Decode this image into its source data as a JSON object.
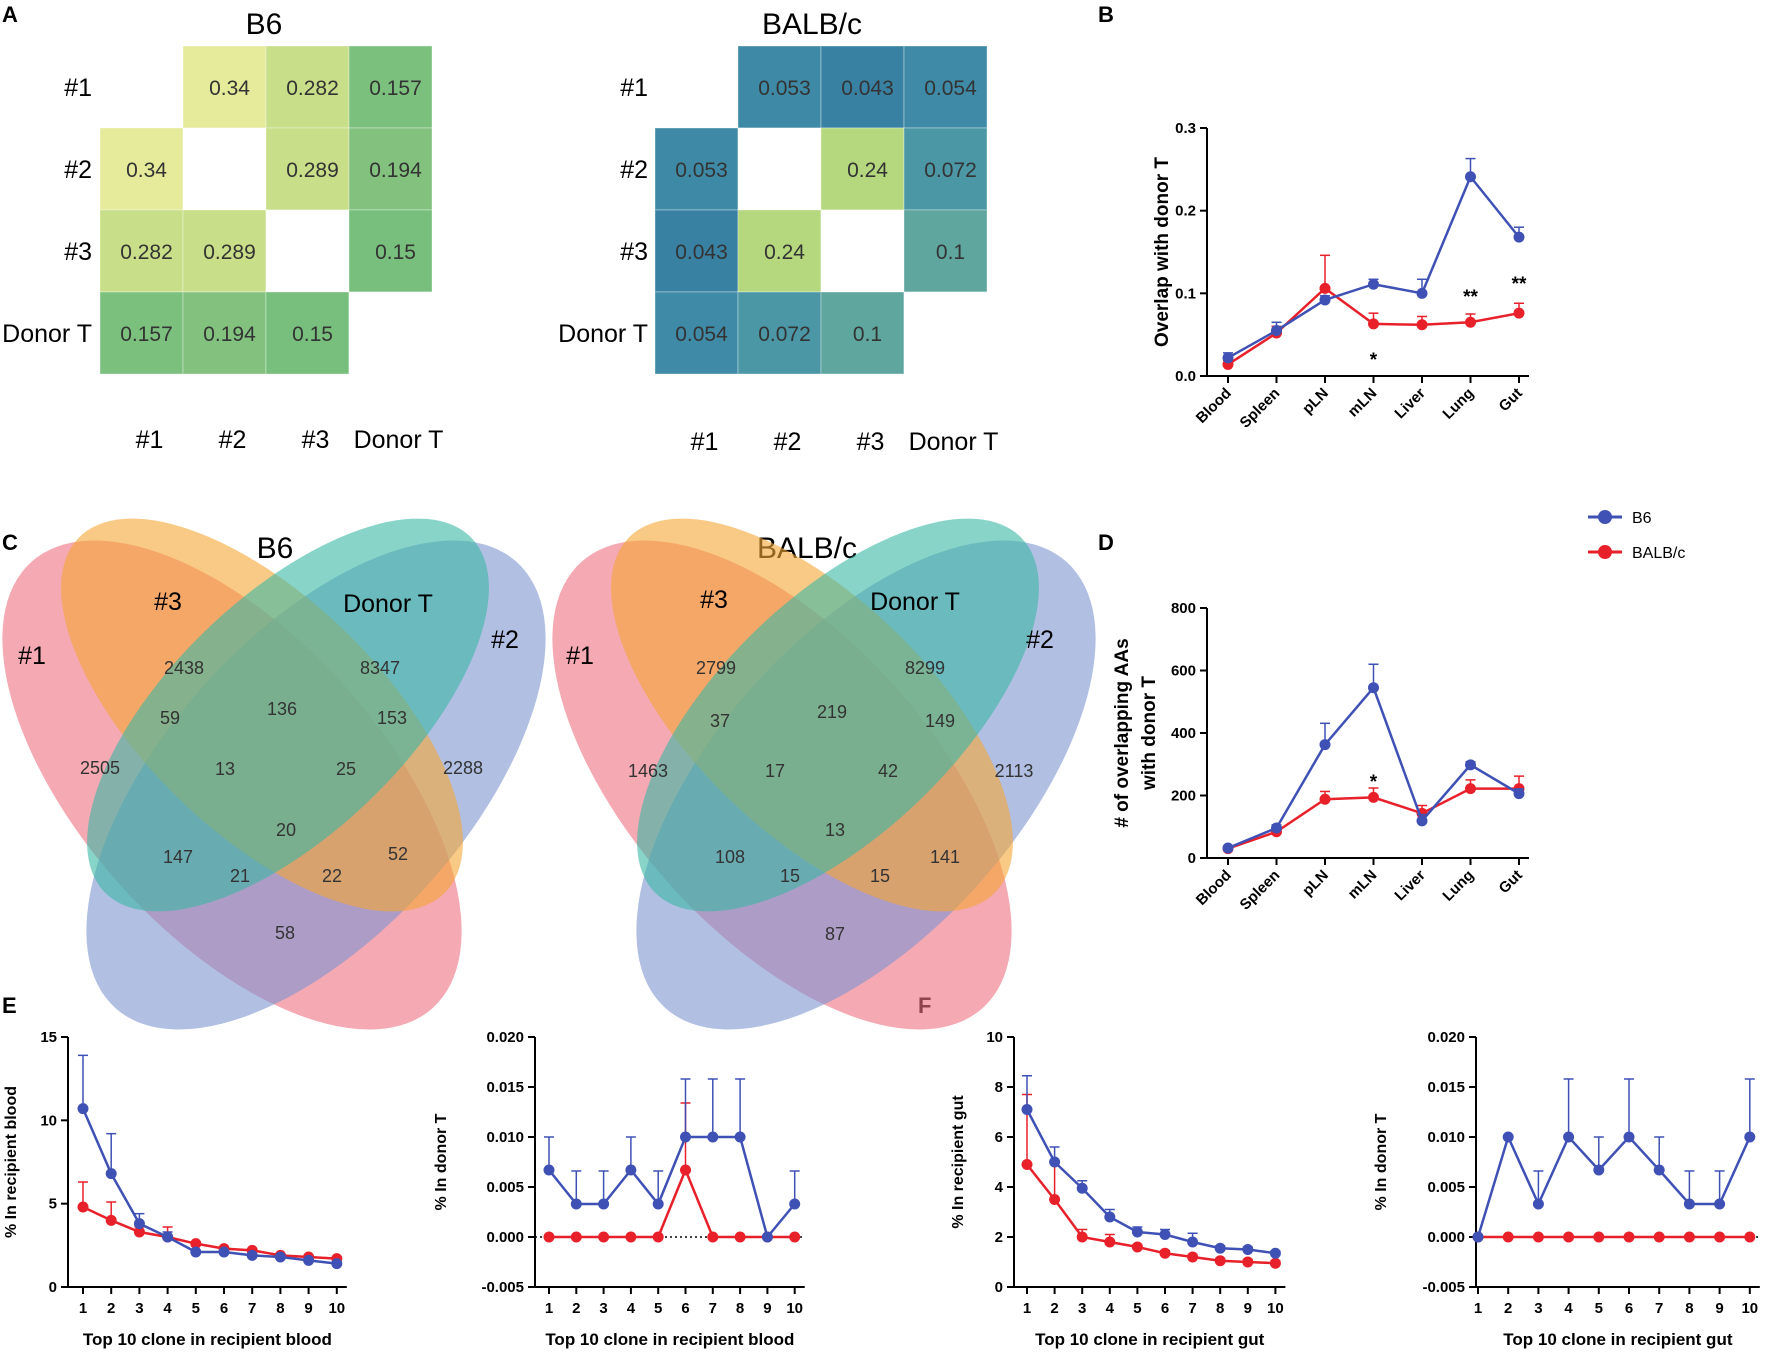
{
  "panels": {
    "A": "A",
    "B": "B",
    "C": "C",
    "D": "D",
    "E": "E",
    "F": "F"
  },
  "colors": {
    "b6": "#3f51b5",
    "balbc": "#e8202a",
    "axis": "#000000"
  },
  "legend": [
    {
      "name": "B6",
      "color": "#3f51b5"
    },
    {
      "name": "BALB/c",
      "color": "#e8202a"
    }
  ],
  "chart_data": [
    {
      "id": "A1",
      "type": "heatmap",
      "title": "B6",
      "rows": [
        "#1",
        "#2",
        "#3",
        "Donor T"
      ],
      "cols": [
        "#1",
        "#2",
        "#3",
        "Donor T"
      ],
      "values": [
        [
          null,
          0.34,
          0.282,
          0.157
        ],
        [
          0.34,
          null,
          0.289,
          0.194
        ],
        [
          0.282,
          0.289,
          null,
          0.15
        ],
        [
          0.157,
          0.194,
          0.15,
          null
        ]
      ],
      "labels": [
        [
          "",
          "0.34",
          "0.282",
          "0.157"
        ],
        [
          "0.34",
          "",
          "0.289",
          "0.194"
        ],
        [
          "0.282",
          "0.289",
          "",
          "0.15"
        ],
        [
          "0.157",
          "0.194",
          "0.15",
          ""
        ]
      ],
      "colors": [
        [
          "#ffffff",
          "#e5eb9a",
          "#c9de88",
          "#7cc07d"
        ],
        [
          "#e5eb9a",
          "#ffffff",
          "#c8de88",
          "#82c27e"
        ],
        [
          "#c9de88",
          "#c8de88",
          "#ffffff",
          "#78be7c"
        ],
        [
          "#7cc07d",
          "#82c27e",
          "#78be7c",
          "#ffffff"
        ]
      ]
    },
    {
      "id": "A2",
      "type": "heatmap",
      "title": "BALB/c",
      "rows": [
        "#1",
        "#2",
        "#3",
        "Donor T"
      ],
      "cols": [
        "#1",
        "#2",
        "#3",
        "Donor T"
      ],
      "values": [
        [
          null,
          0.053,
          0.043,
          0.054
        ],
        [
          0.053,
          null,
          0.24,
          0.072
        ],
        [
          0.043,
          0.24,
          null,
          0.1
        ],
        [
          0.054,
          0.072,
          0.1,
          null
        ]
      ],
      "labels": [
        [
          "",
          "0.053",
          "0.043",
          "0.054"
        ],
        [
          "0.053",
          "",
          "0.24",
          "0.072"
        ],
        [
          "0.043",
          "0.24",
          "",
          "0.1"
        ],
        [
          "0.054",
          "0.072",
          "0.1",
          ""
        ]
      ],
      "colors": [
        [
          "#ffffff",
          "#3e8aa6",
          "#3981a3",
          "#3f8ba7"
        ],
        [
          "#3e8aa6",
          "#ffffff",
          "#b5d87f",
          "#4b97a6"
        ],
        [
          "#3981a3",
          "#b5d87f",
          "#ffffff",
          "#5fa79e"
        ],
        [
          "#3f8ba7",
          "#4b97a6",
          "#5fa79e",
          "#ffffff"
        ]
      ]
    },
    {
      "id": "B",
      "type": "line",
      "ylabel": "Overlap with donor T",
      "xlabel": "",
      "categories": [
        "Blood",
        "Spleen",
        "pLN",
        "mLN",
        "Liver",
        "Lung",
        "Gut"
      ],
      "ylim": [
        0,
        0.3
      ],
      "yticks": [
        0,
        0.1,
        0.2,
        0.3
      ],
      "ytick_labels": [
        "0.0",
        "0.1",
        "0.2",
        "0.3"
      ],
      "series": [
        {
          "name": "B6",
          "color": "#3f51b5",
          "values": [
            0.022,
            0.055,
            0.092,
            0.111,
            0.1,
            0.241,
            0.168
          ],
          "err": [
            0.006,
            0.01,
            0.005,
            0.006,
            0.017,
            0.022,
            0.012
          ]
        },
        {
          "name": "BALB/c",
          "color": "#e8202a",
          "values": [
            0.014,
            0.052,
            0.106,
            0.063,
            0.062,
            0.065,
            0.076
          ],
          "err": [
            0.005,
            0.008,
            0.04,
            0.013,
            0.01,
            0.01,
            0.012
          ]
        }
      ],
      "annotations": [
        {
          "category": "mLN",
          "text": "*",
          "y": 0.022
        },
        {
          "category": "Lung",
          "text": "**",
          "y": 0.098
        },
        {
          "category": "Gut",
          "text": "**",
          "y": 0.114
        }
      ]
    },
    {
      "id": "D",
      "type": "line",
      "ylabel": "# of overlapping AAs with donor T",
      "ylabel_lines": [
        "# of overlapping AAs",
        "with donor T"
      ],
      "xlabel": "",
      "categories": [
        "Blood",
        "Spleen",
        "pLN",
        "mLN",
        "Liver",
        "Lung",
        "Gut"
      ],
      "ylim": [
        0,
        800
      ],
      "yticks": [
        0,
        200,
        400,
        600,
        800
      ],
      "ytick_labels": [
        "0",
        "200",
        "400",
        "600",
        "800"
      ],
      "series": [
        {
          "name": "B6",
          "color": "#3f51b5",
          "values": [
            32,
            96,
            363,
            545,
            119,
            298,
            206
          ],
          "err": [
            5,
            10,
            68,
            75,
            20,
            10,
            15
          ]
        },
        {
          "name": "BALB/c",
          "color": "#e8202a",
          "values": [
            30,
            84,
            188,
            194,
            143,
            222,
            222
          ],
          "err": [
            5,
            8,
            25,
            30,
            25,
            28,
            40
          ]
        }
      ],
      "annotations": [
        {
          "category": "mLN",
          "text": "*",
          "y": 250
        }
      ]
    },
    {
      "id": "E1",
      "type": "line",
      "ylabel": "% In recipient blood",
      "xlabel": "Top 10 clone in recipient blood",
      "categories": [
        "1",
        "2",
        "3",
        "4",
        "5",
        "6",
        "7",
        "8",
        "9",
        "10"
      ],
      "ylim": [
        0,
        15
      ],
      "yticks": [
        0,
        5,
        10,
        15
      ],
      "ytick_labels": [
        "0",
        "5",
        "10",
        "15"
      ],
      "series": [
        {
          "name": "B6",
          "color": "#3f51b5",
          "values": [
            10.7,
            6.8,
            3.8,
            3.0,
            2.1,
            2.1,
            1.9,
            1.8,
            1.6,
            1.4
          ],
          "err": [
            3.2,
            2.4,
            0.6,
            0.3,
            0.1,
            0.1,
            0.1,
            0.1,
            0.1,
            0.1
          ]
        },
        {
          "name": "BALB/c",
          "color": "#e8202a",
          "values": [
            4.8,
            4.0,
            3.3,
            3.0,
            2.6,
            2.3,
            2.2,
            1.9,
            1.8,
            1.7
          ],
          "err": [
            1.5,
            1.1,
            0.3,
            0.6,
            0.1,
            0.1,
            0.1,
            0.1,
            0.1,
            0.1
          ]
        }
      ]
    },
    {
      "id": "E2",
      "type": "line",
      "ylabel": "% In donor T",
      "xlabel": "Top 10 clone in recipient blood",
      "categories": [
        "1",
        "2",
        "3",
        "4",
        "5",
        "6",
        "7",
        "8",
        "9",
        "10"
      ],
      "ylim": [
        -0.005,
        0.02
      ],
      "yticks": [
        -0.005,
        0,
        0.005,
        0.01,
        0.015,
        0.02
      ],
      "ytick_labels": [
        "-0.005",
        "0.000",
        "0.005",
        "0.010",
        "0.015",
        "0.020"
      ],
      "zero_line": true,
      "series": [
        {
          "name": "B6",
          "color": "#3f51b5",
          "values": [
            0.0067,
            0.0033,
            0.0033,
            0.0067,
            0.0033,
            0.01,
            0.01,
            0.01,
            0,
            0.0033
          ],
          "err": [
            0.0033,
            0.0033,
            0.0033,
            0.0033,
            0.0033,
            0.0058,
            0.0058,
            0.0058,
            0,
            0.0033
          ]
        },
        {
          "name": "BALB/c",
          "color": "#e8202a",
          "values": [
            0,
            0,
            0,
            0,
            0,
            0.0067,
            0,
            0,
            0,
            0
          ],
          "err": [
            0,
            0,
            0,
            0,
            0,
            0.0067,
            0,
            0,
            0,
            0
          ]
        }
      ]
    },
    {
      "id": "F1",
      "type": "line",
      "ylabel": "% In recipient gut",
      "xlabel": "Top 10 clone in recipient gut",
      "categories": [
        "1",
        "2",
        "3",
        "4",
        "5",
        "6",
        "7",
        "8",
        "9",
        "10"
      ],
      "ylim": [
        0,
        10
      ],
      "yticks": [
        0,
        2,
        4,
        6,
        8,
        10
      ],
      "ytick_labels": [
        "0",
        "2",
        "4",
        "6",
        "8",
        "10"
      ],
      "series": [
        {
          "name": "B6",
          "color": "#3f51b5",
          "values": [
            7.1,
            5.0,
            3.95,
            2.8,
            2.2,
            2.1,
            1.8,
            1.55,
            1.5,
            1.35
          ],
          "err": [
            1.35,
            0.6,
            0.3,
            0.3,
            0.2,
            0.2,
            0.35,
            0.1,
            0.1,
            0.1
          ]
        },
        {
          "name": "BALB/c",
          "color": "#e8202a",
          "values": [
            4.9,
            3.5,
            2.0,
            1.8,
            1.6,
            1.35,
            1.2,
            1.05,
            1.0,
            0.95
          ],
          "err": [
            2.8,
            1.5,
            0.3,
            0.3,
            0.1,
            0.1,
            0.1,
            0.1,
            0.1,
            0.1
          ]
        }
      ]
    },
    {
      "id": "F2",
      "type": "line",
      "ylabel": "% In donor T",
      "xlabel": "Top 10 clone in recipient gut",
      "categories": [
        "1",
        "2",
        "3",
        "4",
        "5",
        "6",
        "7",
        "8",
        "9",
        "10"
      ],
      "ylim": [
        -0.005,
        0.02
      ],
      "yticks": [
        -0.005,
        0,
        0.005,
        0.01,
        0.015,
        0.02
      ],
      "ytick_labels": [
        "-0.005",
        "0.000",
        "0.005",
        "0.010",
        "0.015",
        "0.020"
      ],
      "zero_line": true,
      "series": [
        {
          "name": "B6",
          "color": "#3f51b5",
          "values": [
            0,
            0.01,
            0.0033,
            0.01,
            0.0067,
            0.01,
            0.0067,
            0.0033,
            0.0033,
            0.01
          ],
          "err": [
            0,
            0,
            0.0033,
            0.0058,
            0.0033,
            0.0058,
            0.0033,
            0.0033,
            0.0033,
            0.0058
          ]
        },
        {
          "name": "BALB/c",
          "color": "#e8202a",
          "values": [
            0,
            0,
            0,
            0,
            0,
            0,
            0,
            0,
            0,
            0
          ],
          "err": [
            0,
            0,
            0,
            0,
            0,
            0,
            0,
            0,
            0,
            0
          ]
        }
      ]
    }
  ],
  "venn": [
    {
      "id": "C1",
      "title": "B6",
      "set_labels": {
        "s1": "#1",
        "s3": "#3",
        "donor": "Donor T",
        "s2": "#2"
      },
      "regions": {
        "only1": "2505",
        "only3": "2438",
        "onlyDonor": "8347",
        "only2": "2288",
        "r13": "59",
        "r3D": "136",
        "rD2": "153",
        "r13D": "13",
        "r3D2": "25",
        "r1D": "147",
        "all": "20",
        "r32": "52",
        "r1D2": "21",
        "r132": "22",
        "r12": "58"
      }
    },
    {
      "id": "C2",
      "title": "BALB/c",
      "set_labels": {
        "s1": "#1",
        "s3": "#3",
        "donor": "Donor T",
        "s2": "#2"
      },
      "regions": {
        "only1": "1463",
        "only3": "2799",
        "onlyDonor": "8299",
        "only2": "2113",
        "r13": "37",
        "r3D": "219",
        "rD2": "149",
        "r13D": "17",
        "r3D2": "42",
        "r1D": "108",
        "all": "13",
        "r32": "141",
        "r1D2": "15",
        "r132": "15",
        "r12": "87"
      }
    }
  ]
}
